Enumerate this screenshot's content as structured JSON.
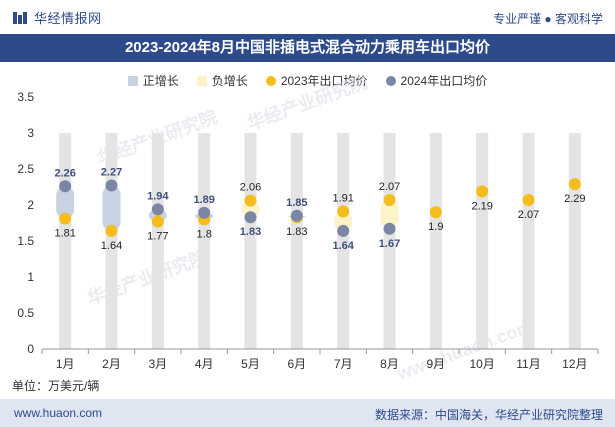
{
  "header": {
    "brand_name": "华经情报网",
    "tagline": "专业严谨 ● 客观科学"
  },
  "title": "2023-2024年8月中国非插电式混合动力乘用车出口均价",
  "footer": {
    "website": "www.huaon.com",
    "source": "数据来源：中国海关，华经产业研究院整理"
  },
  "watermarks": [
    "华经产业研究院",
    "华经产业研究院",
    "华经产业研究院",
    "www.huaon.com"
  ],
  "colors": {
    "brand": "#2d4a8a",
    "increase": "#c9d2e3",
    "decrease": "#fdf3c8",
    "series2023": "#f5bd1c",
    "series2024": "#7b86a4",
    "column": "#e4e4e4"
  },
  "chart_data": {
    "type": "scatter",
    "categories": [
      "1月",
      "2月",
      "3月",
      "4月",
      "5月",
      "6月",
      "7月",
      "8月",
      "9月",
      "10月",
      "11月",
      "12月"
    ],
    "series": [
      {
        "name": "2023年出口均价",
        "values": [
          1.81,
          1.64,
          1.77,
          1.8,
          2.06,
          1.83,
          1.91,
          2.07,
          1.9,
          2.19,
          2.07,
          2.29
        ]
      },
      {
        "name": "2024年出口均价",
        "values": [
          2.26,
          2.27,
          1.94,
          1.89,
          1.83,
          1.85,
          1.64,
          1.67,
          null,
          null,
          null,
          null
        ]
      }
    ],
    "range_series": [
      {
        "name": "正增长"
      },
      {
        "name": "负增长"
      }
    ],
    "ylim": [
      0,
      3.5
    ],
    "yticks": [
      "0",
      "0.5",
      "1",
      "1.5",
      "2",
      "2.5",
      "3",
      "3.5"
    ],
    "ylabel": "单位：万美元/辆",
    "legend_position": "top"
  }
}
